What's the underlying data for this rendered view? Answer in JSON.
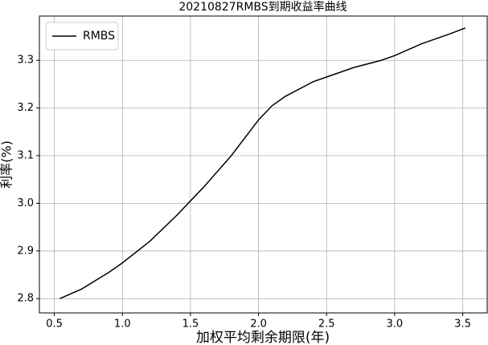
{
  "chart_data": {
    "type": "line",
    "title": "20210827RMBS到期收益率曲线",
    "x_label": "加权平均剩余期限(年)",
    "y_label": "利率(%)",
    "x": [
      0.54,
      0.7,
      0.9,
      1.0,
      1.2,
      1.4,
      1.5,
      1.6,
      1.8,
      2.0,
      2.1,
      2.2,
      2.4,
      2.5,
      2.7,
      2.9,
      3.0,
      3.2,
      3.4,
      3.52
    ],
    "series": [
      {
        "name": "RMBS",
        "color": "#000000",
        "values": [
          2.8,
          2.82,
          2.855,
          2.875,
          2.92,
          2.975,
          3.005,
          3.035,
          3.1,
          3.175,
          3.205,
          3.225,
          3.255,
          3.265,
          3.285,
          3.3,
          3.31,
          3.335,
          3.355,
          3.368
        ]
      }
    ],
    "xlim": [
      0.39,
      3.68
    ],
    "ylim": [
      2.77,
      3.393
    ],
    "xticks": [
      {
        "value": 0.5,
        "label": "0.5"
      },
      {
        "value": 1.0,
        "label": "1.0"
      },
      {
        "value": 1.5,
        "label": "1.5"
      },
      {
        "value": 2.0,
        "label": "2.0"
      },
      {
        "value": 2.5,
        "label": "2.5"
      },
      {
        "value": 3.0,
        "label": "3.0"
      },
      {
        "value": 3.5,
        "label": "3.5"
      }
    ],
    "yticks": [
      {
        "value": 2.8,
        "label": "2.8"
      },
      {
        "value": 2.9,
        "label": "2.9"
      },
      {
        "value": 3.0,
        "label": "3.0"
      },
      {
        "value": 3.1,
        "label": "3.1"
      },
      {
        "value": 3.2,
        "label": "3.2"
      },
      {
        "value": 3.3,
        "label": "3.3"
      }
    ],
    "grid": true,
    "legend": "upper-left"
  }
}
